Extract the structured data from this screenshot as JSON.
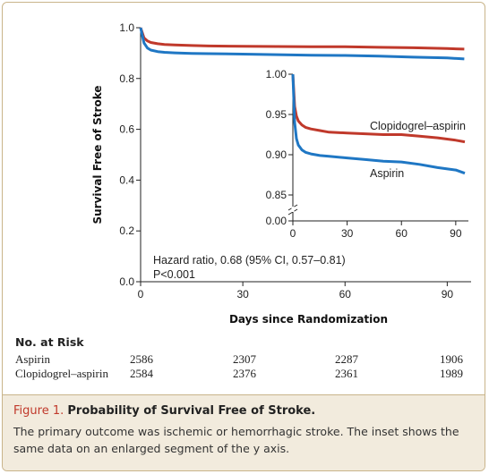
{
  "figure": {
    "label": "Figure 1.",
    "title": "Probability of Survival Free of Stroke.",
    "caption": "The primary outcome was ischemic or hemorrhagic stroke. The inset shows the same data on an enlarged segment of the y axis."
  },
  "chart_data": {
    "type": "line",
    "ylabel": "Survival Free of Stroke",
    "xlabel": "Days since Randomization",
    "x_ticks": [
      "0",
      "30",
      "60",
      "90"
    ],
    "y_ticks": [
      "0.0",
      "0.2",
      "0.4",
      "0.6",
      "0.8",
      "1.0"
    ],
    "xlim": [
      0,
      97
    ],
    "ylim": [
      0,
      1.0
    ],
    "annotation": [
      "Hazard ratio, 0.68 (95% CI, 0.57–0.81)",
      "P<0.001"
    ],
    "series": [
      {
        "name": "Clopidogrel–aspirin",
        "color": "#c0392b",
        "x": [
          0,
          1,
          2,
          3,
          5,
          7,
          10,
          15,
          20,
          30,
          40,
          50,
          60,
          70,
          80,
          90,
          95
        ],
        "y": [
          1.0,
          0.96,
          0.948,
          0.942,
          0.937,
          0.934,
          0.932,
          0.93,
          0.928,
          0.927,
          0.926,
          0.925,
          0.925,
          0.923,
          0.921,
          0.918,
          0.916
        ]
      },
      {
        "name": "Aspirin",
        "color": "#1f77c4",
        "x": [
          0,
          1,
          2,
          3,
          5,
          7,
          10,
          15,
          20,
          30,
          40,
          50,
          60,
          70,
          80,
          90,
          95
        ],
        "y": [
          1.0,
          0.94,
          0.92,
          0.912,
          0.906,
          0.903,
          0.901,
          0.899,
          0.898,
          0.896,
          0.894,
          0.892,
          0.891,
          0.888,
          0.884,
          0.881,
          0.877
        ]
      }
    ],
    "inset": {
      "xlim": [
        0,
        97
      ],
      "ylim": [
        0.85,
        1.0
      ],
      "x_ticks": [
        "0",
        "30",
        "60",
        "90"
      ],
      "y_ticks": [
        "0.00",
        "0.85",
        "0.90",
        "0.95",
        "1.00"
      ],
      "axis_break": true
    }
  },
  "risk_table": {
    "title": "No. at Risk",
    "rows": [
      {
        "name": "Aspirin",
        "values": [
          "2586",
          "2307",
          "2287",
          "1906"
        ]
      },
      {
        "name": "Clopidogrel–aspirin",
        "values": [
          "2584",
          "2376",
          "2361",
          "1989"
        ]
      }
    ]
  }
}
